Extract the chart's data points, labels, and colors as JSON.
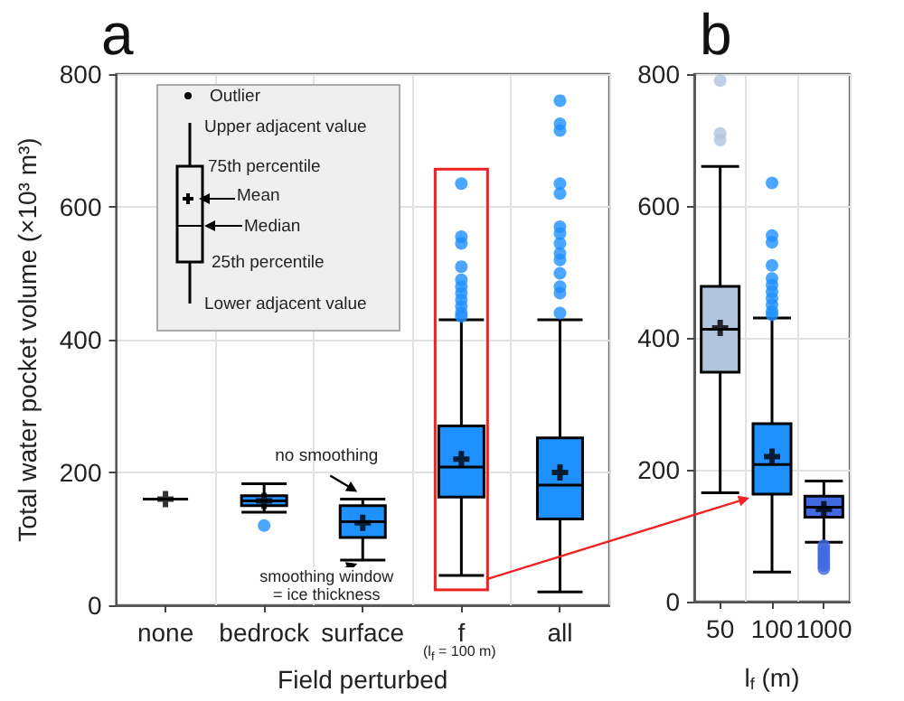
{
  "chart_data": [
    {
      "type": "box",
      "title": "a",
      "xlabel": "Field perturbed",
      "ylabel": "Total water pocket volume (×10³ m³)",
      "categories": [
        "none",
        "bedrock",
        "surface",
        "f",
        "all"
      ],
      "colors": [
        "#000000",
        "#1e90ff",
        "#1e90ff",
        "#1e90ff",
        "#1e90ff"
      ],
      "boxes": [
        {
          "low": 160,
          "q1": 160,
          "median": 160,
          "q3": 160,
          "high": 160,
          "mean": 160
        },
        {
          "low": 140,
          "q1": 150,
          "median": 157,
          "q3": 165,
          "high": 183,
          "mean": 157,
          "outliers": [
            120
          ]
        },
        {
          "low": 68,
          "q1": 102,
          "median": 126,
          "q3": 150,
          "high": 160,
          "mean": 124
        },
        {
          "low": 45,
          "q1": 163,
          "median": 208,
          "q3": 270,
          "high": 430,
          "mean": 220,
          "outliers": [
            435,
            440,
            450,
            460,
            470,
            480,
            490,
            510,
            545,
            555,
            635
          ]
        },
        {
          "low": 20,
          "q1": 130,
          "median": 181,
          "q3": 252,
          "high": 430,
          "mean": 200,
          "outliers": [
            440,
            470,
            480,
            500,
            520,
            530,
            545,
            560,
            570,
            620,
            635,
            715,
            725,
            760
          ]
        }
      ],
      "ylim": [
        0,
        800
      ],
      "yticks": [
        0,
        200,
        400,
        600,
        800
      ],
      "grid": true,
      "annotations": [
        "Outlier",
        "Upper adjacent value",
        "75th percentile",
        "Mean",
        "Median",
        "25th percentile",
        "Lower adjacent value",
        {
          "text": "no smoothing",
          "x": "surface",
          "y": 160
        },
        {
          "text": "smoothing window = ice thickness",
          "x": "surface",
          "y": 68
        },
        "(l$_{f}$ = 100 m)"
      ]
    },
    {
      "type": "box",
      "title": "b",
      "xlabel": "l$_{f}$ (m)",
      "categories": [
        "50",
        "100",
        "1000"
      ],
      "colors": [
        "#b0c4de",
        "#1e90ff",
        "#4169e1"
      ],
      "boxes": [
        {
          "low": 165,
          "q1": 348,
          "median": 413,
          "q3": 478,
          "high": 660,
          "mean": 415,
          "outliers": [
            700,
            710,
            790
          ]
        },
        {
          "low": 45,
          "q1": 163,
          "median": 208,
          "q3": 270,
          "high": 430,
          "mean": 220,
          "outliers": [
            435,
            440,
            450,
            460,
            470,
            480,
            490,
            510,
            545,
            555,
            635
          ]
        },
        {
          "low": 90,
          "q1": 128,
          "median": 143,
          "q3": 160,
          "high": 183,
          "mean": 140,
          "outliers": [
            50,
            55,
            60,
            65,
            70,
            75,
            80,
            85
          ]
        }
      ],
      "ylim": [
        0,
        800
      ],
      "yticks": [
        0,
        200,
        400,
        600,
        800
      ],
      "grid": true
    }
  ]
}
